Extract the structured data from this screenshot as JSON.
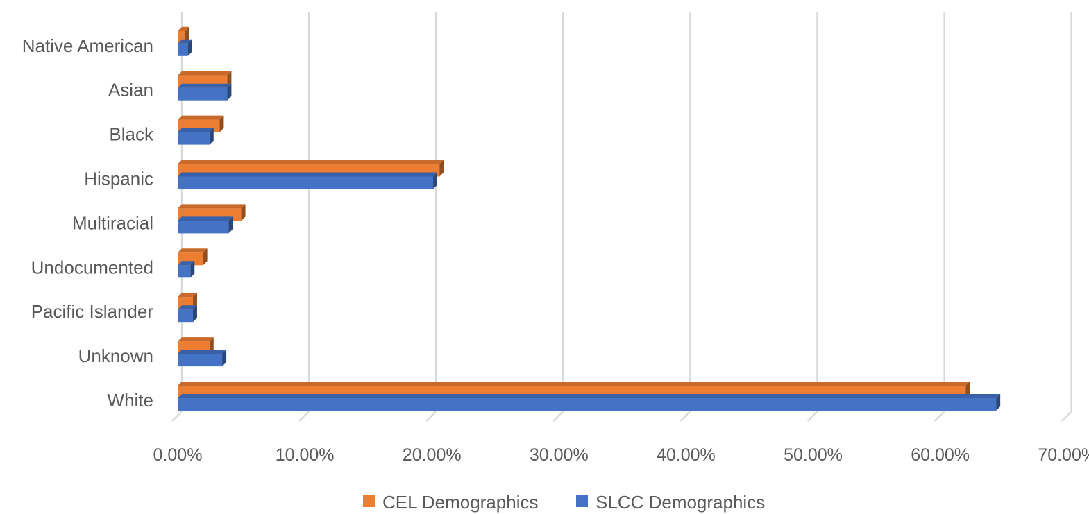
{
  "chart_data": {
    "type": "bar",
    "orientation": "horizontal",
    "style": "3d",
    "title": "",
    "xlabel": "",
    "ylabel": "",
    "categories": [
      "White",
      "Unknown",
      "Pacific Islander",
      "Undocumented",
      "Multiracial",
      "Hispanic",
      "Black",
      "Asian",
      "Native American"
    ],
    "series": [
      {
        "name": "CEL Demographics",
        "color": "#ED7D31",
        "values": [
          62.0,
          2.5,
          1.2,
          2.0,
          5.0,
          20.6,
          3.3,
          3.9,
          0.6
        ]
      },
      {
        "name": "SLCC Demographics",
        "color": "#4472C4",
        "values": [
          64.4,
          3.5,
          1.2,
          1.0,
          4.0,
          20.1,
          2.5,
          3.9,
          0.8
        ]
      }
    ],
    "xlim": [
      0,
      70
    ],
    "xticks": [
      0,
      10,
      20,
      30,
      40,
      50,
      60,
      70
    ],
    "xtick_labels": [
      "0.00%",
      "10.00%",
      "20.00%",
      "30.00%",
      "40.00%",
      "50.00%",
      "60.00%",
      "70.00%"
    ],
    "grid": true,
    "legend": "bottom"
  }
}
